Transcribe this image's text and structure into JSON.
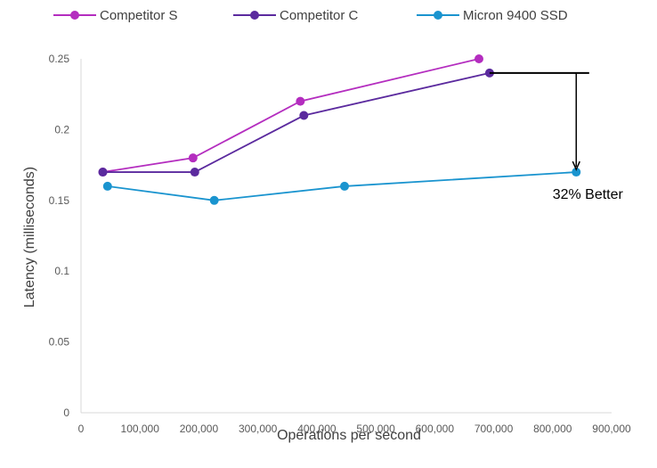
{
  "chart_data": {
    "type": "line",
    "xlabel": "Operations per second",
    "ylabel": "Latency (milliseconds)",
    "xlim": [
      0,
      900000
    ],
    "ylim": [
      0,
      0.25
    ],
    "x_ticks": [
      "0",
      "100,000",
      "200,000",
      "300,000",
      "400,000",
      "500,000",
      "600,000",
      "700,000",
      "800,000",
      "900,000"
    ],
    "y_ticks": [
      "0",
      "0.05",
      "0.1",
      "0.15",
      "0.2",
      "0.25"
    ],
    "legend_position": "top",
    "grid": false,
    "series": [
      {
        "name": "Competitor S",
        "color": "#b42dbf",
        "x": [
          37000,
          190000,
          372000,
          675000
        ],
        "y": [
          0.17,
          0.18,
          0.22,
          0.25
        ]
      },
      {
        "name": "Competitor C",
        "color": "#5b2a9e",
        "x": [
          37000,
          193000,
          378000,
          693000
        ],
        "y": [
          0.17,
          0.17,
          0.21,
          0.24
        ]
      },
      {
        "name": "Micron 9400 SSD",
        "color": "#1a94cf",
        "x": [
          45000,
          226000,
          447000,
          840000
        ],
        "y": [
          0.16,
          0.15,
          0.16,
          0.17
        ]
      }
    ],
    "annotation": {
      "text": "32% Better",
      "x": 840000,
      "y_from": 0.24,
      "y_to": 0.17,
      "line_x_from": 693000,
      "line_x_to": 862000
    }
  }
}
